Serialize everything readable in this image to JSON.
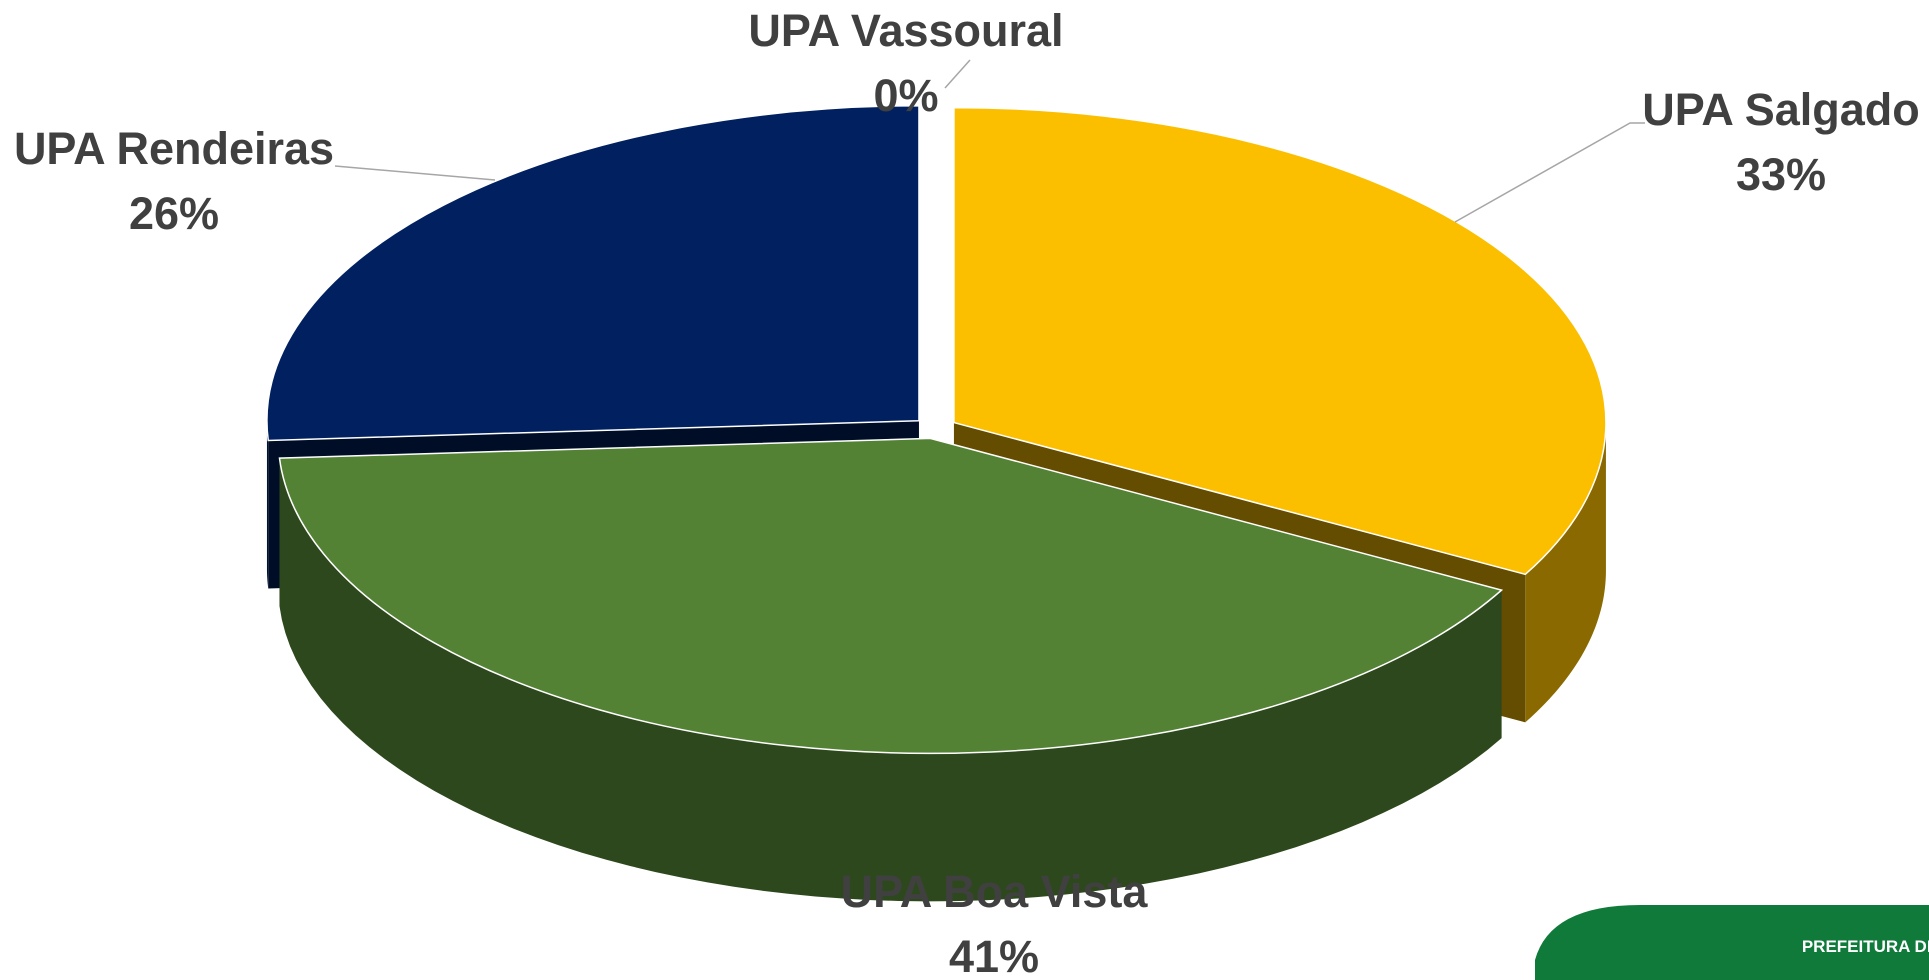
{
  "chart_data": {
    "type": "pie3d",
    "categories": [
      "UPA Vassoural",
      "UPA Salgado",
      "UPA Boa Vista",
      "UPA Rendeiras"
    ],
    "values": [
      0,
      33,
      41,
      26
    ],
    "value_labels": [
      "0%",
      "33%",
      "41%",
      "26%"
    ],
    "colors": [
      "#a5a5a5",
      "#fbbf00",
      "#548235",
      "#002060"
    ]
  },
  "logo_text": "PREFEITURA DE"
}
